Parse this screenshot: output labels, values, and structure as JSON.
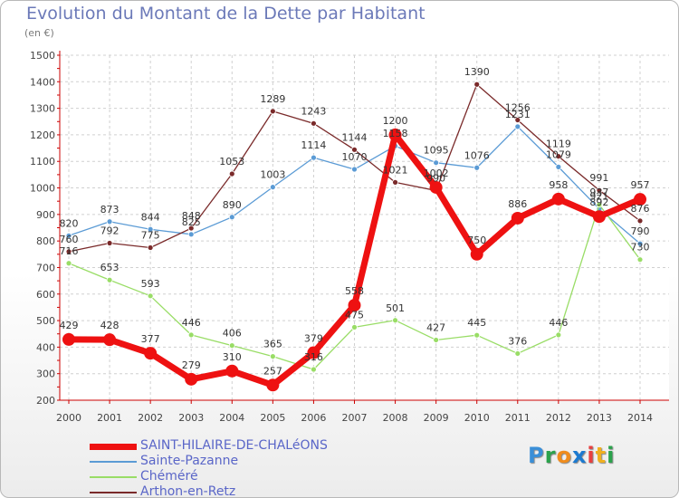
{
  "title": "Evolution du Montant de la Dette par Habitant",
  "unit": "(en €)",
  "logo": [
    "P",
    "r",
    "o",
    "x",
    "i",
    "t",
    "i"
  ],
  "logo_colors": [
    "#3a8fd8",
    "#2ba24c",
    "#f08c1c",
    "#1c7ad0",
    "#e84040",
    "#f0b020",
    "#2ba24c"
  ],
  "chart_data": {
    "type": "line",
    "x": [
      "2000",
      "2001",
      "2002",
      "2003",
      "2004",
      "2005",
      "2006",
      "2007",
      "2008",
      "2009",
      "2010",
      "2011",
      "2012",
      "2013",
      "2014"
    ],
    "ylim": [
      200,
      1500
    ],
    "yticks": [
      "200",
      "300",
      "400",
      "500",
      "600",
      "700",
      "800",
      "900",
      "1000",
      "1100",
      "1200",
      "1300",
      "1400",
      "1500"
    ],
    "grid": true,
    "legend_position": "bottom-left",
    "series": [
      {
        "name": "SAINT-HILAIRE-DE-CHALéONS",
        "color": "#ee1111",
        "values": [
          429,
          428,
          377,
          279,
          310,
          257,
          379,
          558,
          1200,
          1002,
          750,
          886,
          958,
          892,
          957
        ]
      },
      {
        "name": "Sainte-Pazanne",
        "color": "#5b9bd5",
        "values": [
          820,
          873,
          844,
          825,
          890,
          1003,
          1114,
          1070,
          1158,
          1095,
          1076,
          1231,
          1079,
          921,
          790
        ]
      },
      {
        "name": "Chéméré",
        "color": "#99dd66",
        "values": [
          716,
          653,
          593,
          446,
          406,
          365,
          316,
          475,
          501,
          427,
          445,
          376,
          446,
          937,
          730
        ]
      },
      {
        "name": "Arthon-en-Retz",
        "color": "#7a2a2a",
        "values": [
          760,
          792,
          775,
          848,
          1053,
          1289,
          1243,
          1144,
          1021,
          990,
          1390,
          1256,
          1119,
          991,
          876
        ]
      }
    ],
    "data_labels": [
      [
        "429",
        "428",
        "377",
        "279",
        "310",
        "257",
        "379",
        "558",
        "1200",
        "1002",
        "750",
        "886",
        "958",
        "892",
        "957"
      ],
      [
        "820",
        "873",
        "844",
        "825",
        "890",
        "1003",
        "1114",
        "1070",
        "1158",
        "1095",
        "1076",
        "1231",
        "1079",
        "921",
        "790"
      ],
      [
        "716",
        "653",
        "593",
        "446",
        "406",
        "365",
        "316",
        "475",
        "501",
        "427",
        "445",
        "376",
        "446",
        "937",
        "730"
      ],
      [
        "760",
        "792",
        "775",
        "848",
        "1053",
        "1289",
        "1243",
        "1144",
        "1021",
        "990",
        "1390",
        "1256",
        "1119",
        "991",
        "876"
      ]
    ]
  }
}
